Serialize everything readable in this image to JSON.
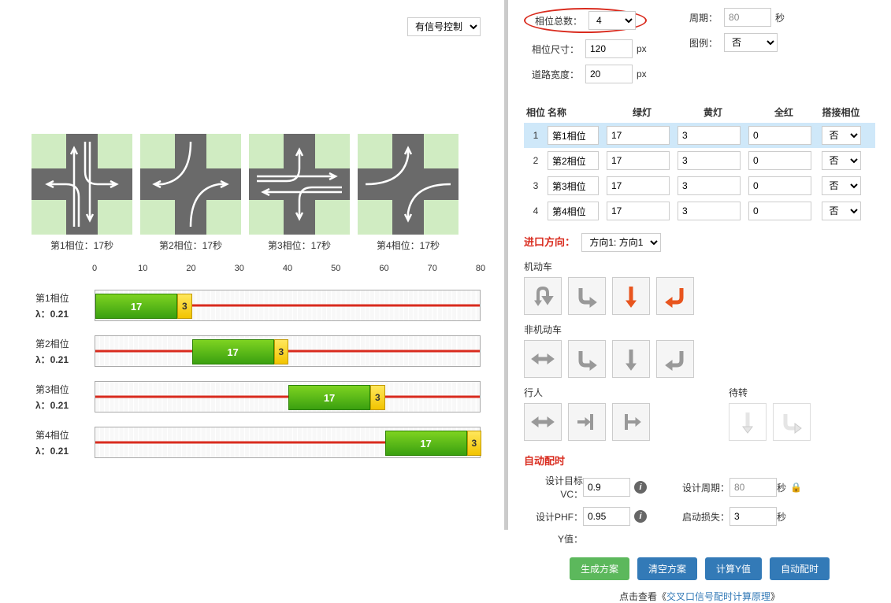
{
  "control_type": "有信号控制",
  "settings": {
    "phase_count_label": "相位总数：",
    "phase_count": "4",
    "cycle_label": "周期：",
    "cycle": "80",
    "cycle_unit": "秒",
    "phase_size_label": "相位尺寸：",
    "phase_size": "120",
    "phase_size_unit": "px",
    "legend_label": "图例：",
    "legend": "否",
    "road_width_label": "道路宽度：",
    "road_width": "20",
    "road_width_unit": "px"
  },
  "phase_diagrams": [
    {
      "label": "第1相位：17秒"
    },
    {
      "label": "第2相位：17秒"
    },
    {
      "label": "第3相位：17秒"
    },
    {
      "label": "第4相位：17秒"
    }
  ],
  "axis": {
    "ticks": [
      0,
      10,
      20,
      30,
      40,
      50,
      60,
      70,
      80
    ],
    "max": 80
  },
  "timeline": [
    {
      "name": "第1相位",
      "lambda": "λ：0.21",
      "green_start": 0,
      "green_dur": 17,
      "yellow_dur": 3,
      "green_val": "17",
      "yellow_val": "3"
    },
    {
      "name": "第2相位",
      "lambda": "λ：0.21",
      "green_start": 20,
      "green_dur": 17,
      "yellow_dur": 3,
      "green_val": "17",
      "yellow_val": "3"
    },
    {
      "name": "第3相位",
      "lambda": "λ：0.21",
      "green_start": 40,
      "green_dur": 17,
      "yellow_dur": 3,
      "green_val": "17",
      "yellow_val": "3"
    },
    {
      "name": "第4相位",
      "lambda": "λ：0.21",
      "green_start": 60,
      "green_dur": 17,
      "yellow_dur": 3,
      "green_val": "17",
      "yellow_val": "3"
    }
  ],
  "table": {
    "headers": {
      "phase": "相位",
      "name": "名称",
      "green": "绿灯",
      "yellow": "黄灯",
      "allred": "全红",
      "connect": "搭接相位"
    },
    "rows": [
      {
        "idx": "1",
        "name": "第1相位",
        "green": "17",
        "yellow": "3",
        "allred": "0",
        "connect": "否",
        "selected": true
      },
      {
        "idx": "2",
        "name": "第2相位",
        "green": "17",
        "yellow": "3",
        "allred": "0",
        "connect": "否",
        "selected": false
      },
      {
        "idx": "3",
        "name": "第3相位",
        "green": "17",
        "yellow": "3",
        "allred": "0",
        "connect": "否",
        "selected": false
      },
      {
        "idx": "4",
        "name": "第4相位",
        "green": "17",
        "yellow": "3",
        "allred": "0",
        "connect": "否",
        "selected": false
      }
    ]
  },
  "entry_direction": {
    "label": "进口方向：",
    "value": "方向1: 方向1"
  },
  "vehicle_label": "机动车",
  "nonvehicle_label": "非机动车",
  "pedestrian_label": "行人",
  "waiting_label": "待转",
  "auto_timing": {
    "title": "自动配时",
    "vc_label": "设计目标VC：",
    "vc": "0.9",
    "cycle_label": "设计周期：",
    "cycle": "80",
    "cycle_unit": "秒",
    "phf_label": "设计PHF：",
    "phf": "0.95",
    "startup_label": "启动损失：",
    "startup": "3",
    "startup_unit": "秒",
    "y_label": "Y值："
  },
  "buttons": {
    "gen": "生成方案",
    "clear": "清空方案",
    "calc_y": "计算Y值",
    "auto": "自动配时"
  },
  "footer": {
    "prefix": "点击查看《",
    "link": "交叉口信号配时计算原理",
    "suffix": "》"
  }
}
